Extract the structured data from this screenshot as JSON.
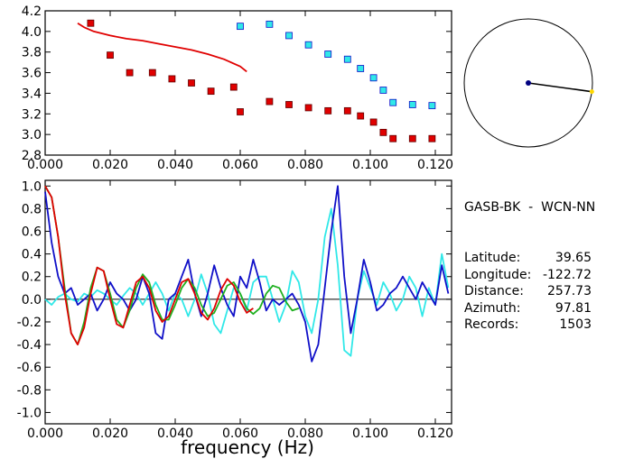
{
  "station": {
    "pair": "GASB-BK  -  WCN-NN",
    "rows": [
      {
        "label": "Latitude:",
        "value": "39.65"
      },
      {
        "label": "Longitude:",
        "value": "-122.72"
      },
      {
        "label": "Distance:",
        "value": "257.73"
      },
      {
        "label": "Azimuth:",
        "value": "97.81"
      },
      {
        "label": "Records:",
        "value": "1503"
      }
    ]
  },
  "colors": {
    "red": "#e00000",
    "cyan": "#30e8e8",
    "blue": "#1010c8",
    "green": "#20b020",
    "axis": "#000000",
    "station_dot": "#000080",
    "azimuth_end": "#ffd800"
  },
  "chart_data": [
    {
      "type": "scatter",
      "panel": "top",
      "xlim": [
        0.0,
        0.125
      ],
      "ylim": [
        2.8,
        4.2
      ],
      "xticks": [
        "0.000",
        "0.020",
        "0.040",
        "0.060",
        "0.080",
        "0.100",
        "0.120"
      ],
      "yticks": [
        "2.8",
        "3.0",
        "3.2",
        "3.4",
        "3.6",
        "3.8",
        "4.0",
        "4.2"
      ],
      "grid": false,
      "series": [
        {
          "kind": "points",
          "color": "red",
          "x": [
            0.014,
            0.02,
            0.026,
            0.033,
            0.039,
            0.045,
            0.051,
            0.058,
            0.06,
            0.069,
            0.075,
            0.081,
            0.087,
            0.093,
            0.097,
            0.101,
            0.104,
            0.107,
            0.113,
            0.119
          ],
          "y": [
            4.08,
            3.77,
            3.6,
            3.6,
            3.54,
            3.5,
            3.42,
            3.46,
            3.22,
            3.32,
            3.29,
            3.26,
            3.23,
            3.23,
            3.18,
            3.12,
            3.02,
            2.96,
            2.96,
            2.96
          ]
        },
        {
          "kind": "points",
          "color": "cyan",
          "x": [
            0.06,
            0.069,
            0.075,
            0.081,
            0.087,
            0.093,
            0.097,
            0.101,
            0.104,
            0.107,
            0.113,
            0.119
          ],
          "y": [
            4.05,
            4.07,
            3.96,
            3.87,
            3.78,
            3.73,
            3.64,
            3.55,
            3.43,
            3.31,
            3.29,
            3.28
          ],
          "edge": "blue"
        },
        {
          "kind": "line",
          "color": "red",
          "x": [
            0.01,
            0.012,
            0.015,
            0.02,
            0.025,
            0.03,
            0.035,
            0.04,
            0.045,
            0.05,
            0.055,
            0.06,
            0.062
          ],
          "y": [
            4.08,
            4.04,
            4.0,
            3.96,
            3.93,
            3.91,
            3.88,
            3.85,
            3.82,
            3.78,
            3.73,
            3.66,
            3.61
          ]
        }
      ]
    },
    {
      "type": "line",
      "panel": "bottom",
      "xlabel": "frequency (Hz)",
      "xlim": [
        0.0,
        0.125
      ],
      "ylim": [
        -1.1,
        1.05
      ],
      "xticks": [
        "0.000",
        "0.020",
        "0.040",
        "0.060",
        "0.080",
        "0.100",
        "0.120"
      ],
      "yticks": [
        "-1.0",
        "-0.8",
        "-0.6",
        "-0.4",
        "-0.2",
        "0.0",
        "0.2",
        "0.4",
        "0.6",
        "0.8",
        "1.0"
      ],
      "zero_line": true,
      "grid": false,
      "series": [
        {
          "color": "cyan",
          "x": [
            0,
            0.002,
            0.004,
            0.006,
            0.008,
            0.01,
            0.012,
            0.014,
            0.016,
            0.018,
            0.02,
            0.022,
            0.024,
            0.026,
            0.028,
            0.03,
            0.032,
            0.034,
            0.036,
            0.038,
            0.04,
            0.042,
            0.044,
            0.046,
            0.048,
            0.05,
            0.052,
            0.054,
            0.056,
            0.058,
            0.06,
            0.062,
            0.064,
            0.066,
            0.068,
            0.07,
            0.072,
            0.074,
            0.076,
            0.078,
            0.08,
            0.082,
            0.084,
            0.086,
            0.088,
            0.09,
            0.092,
            0.094,
            0.096,
            0.098,
            0.1,
            0.102,
            0.104,
            0.106,
            0.108,
            0.11,
            0.112,
            0.114,
            0.116,
            0.118,
            0.12,
            0.122,
            0.124
          ],
          "y": [
            0.0,
            -0.05,
            0.02,
            0.05,
            0.0,
            -0.02,
            0.05,
            0.02,
            0.08,
            0.05,
            0.0,
            -0.05,
            0.03,
            0.1,
            0.05,
            -0.05,
            0.05,
            0.15,
            0.05,
            -0.1,
            0.05,
            0.0,
            -0.15,
            0.0,
            0.22,
            0.05,
            -0.22,
            -0.3,
            -0.1,
            0.1,
            0.05,
            -0.1,
            0.15,
            0.2,
            0.2,
            0.0,
            -0.2,
            -0.05,
            0.25,
            0.15,
            -0.15,
            -0.3,
            0.0,
            0.55,
            0.8,
            0.3,
            -0.45,
            -0.5,
            0.0,
            0.25,
            0.1,
            -0.05,
            0.15,
            0.05,
            -0.1,
            0.0,
            0.2,
            0.1,
            -0.15,
            0.1,
            -0.05,
            0.4,
            0.1
          ]
        },
        {
          "color": "blue",
          "x": [
            0,
            0.002,
            0.004,
            0.006,
            0.008,
            0.01,
            0.012,
            0.014,
            0.016,
            0.018,
            0.02,
            0.022,
            0.024,
            0.026,
            0.028,
            0.03,
            0.032,
            0.034,
            0.036,
            0.038,
            0.04,
            0.042,
            0.044,
            0.046,
            0.048,
            0.05,
            0.052,
            0.054,
            0.056,
            0.058,
            0.06,
            0.062,
            0.064,
            0.066,
            0.068,
            0.07,
            0.072,
            0.074,
            0.076,
            0.078,
            0.08,
            0.082,
            0.084,
            0.086,
            0.088,
            0.09,
            0.092,
            0.094,
            0.096,
            0.098,
            0.1,
            0.102,
            0.104,
            0.106,
            0.108,
            0.11,
            0.112,
            0.114,
            0.116,
            0.118,
            0.12,
            0.122,
            0.124
          ],
          "y": [
            0.95,
            0.5,
            0.2,
            0.05,
            0.1,
            -0.05,
            0.0,
            0.05,
            -0.1,
            0.0,
            0.15,
            0.05,
            0.0,
            -0.1,
            0.0,
            0.2,
            0.05,
            -0.3,
            -0.35,
            0.0,
            0.05,
            0.2,
            0.35,
            0.05,
            -0.15,
            0.05,
            0.3,
            0.1,
            -0.05,
            -0.15,
            0.2,
            0.1,
            0.35,
            0.15,
            -0.1,
            0.0,
            -0.05,
            0.0,
            0.05,
            -0.05,
            -0.2,
            -0.55,
            -0.4,
            0.1,
            0.6,
            1.0,
            0.2,
            -0.3,
            0.0,
            0.35,
            0.15,
            -0.1,
            -0.05,
            0.05,
            0.1,
            0.2,
            0.1,
            0.0,
            0.15,
            0.05,
            -0.05,
            0.3,
            0.05
          ]
        },
        {
          "color": "green",
          "x": [
            0,
            0.002,
            0.004,
            0.006,
            0.008,
            0.01,
            0.012,
            0.014,
            0.016,
            0.018,
            0.02,
            0.022,
            0.024,
            0.026,
            0.028,
            0.03,
            0.032,
            0.034,
            0.036,
            0.038,
            0.04,
            0.042,
            0.044,
            0.046,
            0.048,
            0.05,
            0.052,
            0.054,
            0.056,
            0.058,
            0.06,
            0.062,
            0.064,
            0.066,
            0.068,
            0.07,
            0.072,
            0.074,
            0.076,
            0.078
          ],
          "y": [
            1.0,
            0.9,
            0.55,
            0.1,
            -0.3,
            -0.4,
            -0.2,
            0.1,
            0.28,
            0.25,
            0.05,
            -0.18,
            -0.25,
            -0.1,
            0.1,
            0.22,
            0.15,
            -0.05,
            -0.18,
            -0.18,
            -0.05,
            0.1,
            0.18,
            0.1,
            -0.05,
            -0.15,
            -0.12,
            0.0,
            0.12,
            0.15,
            0.05,
            -0.08,
            -0.13,
            -0.08,
            0.05,
            0.12,
            0.1,
            -0.02,
            -0.1,
            -0.08
          ]
        },
        {
          "color": "red",
          "x": [
            0,
            0.002,
            0.004,
            0.006,
            0.008,
            0.01,
            0.012,
            0.014,
            0.016,
            0.018,
            0.02,
            0.022,
            0.024,
            0.026,
            0.028,
            0.03,
            0.032,
            0.034,
            0.036,
            0.038,
            0.04,
            0.042,
            0.044,
            0.046,
            0.048,
            0.05,
            0.052,
            0.054,
            0.056,
            0.058,
            0.06,
            0.062,
            0.064
          ],
          "y": [
            1.0,
            0.9,
            0.55,
            0.05,
            -0.3,
            -0.4,
            -0.25,
            0.05,
            0.28,
            0.25,
            0.0,
            -0.22,
            -0.25,
            -0.05,
            0.15,
            0.2,
            0.1,
            -0.1,
            -0.2,
            -0.15,
            0.0,
            0.15,
            0.18,
            0.05,
            -0.12,
            -0.18,
            -0.08,
            0.08,
            0.18,
            0.12,
            -0.02,
            -0.12,
            -0.08
          ]
        }
      ]
    }
  ],
  "azimuth_map": {
    "azimuth_deg": 97.81
  }
}
